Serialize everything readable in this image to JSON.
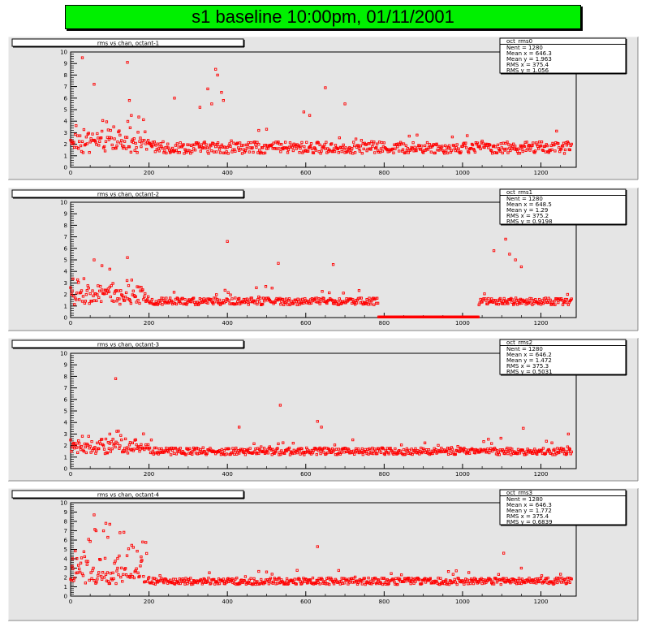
{
  "page_title": "s1 baseline 10:00pm, 01/11/2001",
  "colors": {
    "title_bg": "#00f000",
    "pad_bg": "#e5e5e5",
    "frame": "#ffffff",
    "marker": "#ff0000"
  },
  "chart_data": [
    {
      "type": "scatter",
      "title": "rms vs chan, octant-1",
      "stats": {
        "name": "oct_rms0",
        "lines": [
          "Nent = 1280",
          "Mean x = 646.3",
          "Mean y = 1.963",
          "RMS x = 375.4",
          "RMS y = 1.056"
        ]
      },
      "xlim": [
        0,
        1290
      ],
      "ylim": [
        0,
        10
      ],
      "xticks": [
        0,
        200,
        400,
        600,
        800,
        1000,
        1200
      ],
      "yticks": [
        0,
        1,
        2,
        3,
        4,
        5,
        6,
        7,
        8,
        9,
        10
      ],
      "baseline": 1.7,
      "noise": 0.5,
      "base_amp": 0.9,
      "gap": null,
      "outliers": [
        [
          30,
          9.5
        ],
        [
          60,
          7.2
        ],
        [
          145,
          9.1
        ],
        [
          150,
          5.8
        ],
        [
          155,
          4.5
        ],
        [
          265,
          6.0
        ],
        [
          330,
          5.2
        ],
        [
          350,
          6.8
        ],
        [
          360,
          5.5
        ],
        [
          370,
          8.5
        ],
        [
          375,
          8.0
        ],
        [
          385,
          6.5
        ],
        [
          390,
          5.8
        ],
        [
          595,
          4.8
        ],
        [
          610,
          4.5
        ],
        [
          650,
          6.9
        ],
        [
          700,
          5.5
        ],
        [
          480,
          3.2
        ],
        [
          500,
          3.3
        ]
      ]
    },
    {
      "type": "scatter",
      "title": "rms vs chan, octant-2",
      "stats": {
        "name": "oct_rms1",
        "lines": [
          "Nent = 1280",
          "Mean x = 648.5",
          "Mean y = 1.29",
          "RMS x = 375.2",
          "RMS y = 0.9198"
        ]
      },
      "xlim": [
        0,
        1290
      ],
      "ylim": [
        0,
        10
      ],
      "xticks": [
        0,
        200,
        400,
        600,
        800,
        1000,
        1200
      ],
      "yticks": [
        0,
        1,
        2,
        3,
        4,
        5,
        6,
        7,
        8,
        9,
        10
      ],
      "baseline": 1.4,
      "noise": 0.3,
      "base_amp": 0.8,
      "gap": [
        785,
        1040
      ],
      "outliers": [
        [
          60,
          5.0
        ],
        [
          80,
          4.5
        ],
        [
          100,
          4.2
        ],
        [
          145,
          5.2
        ],
        [
          400,
          6.6
        ],
        [
          530,
          4.7
        ],
        [
          670,
          4.6
        ],
        [
          1080,
          5.8
        ],
        [
          1110,
          6.8
        ],
        [
          1120,
          5.5
        ],
        [
          1135,
          5.0
        ],
        [
          1150,
          4.4
        ]
      ]
    },
    {
      "type": "scatter",
      "title": "rms vs chan, octant-3",
      "stats": {
        "name": "oct_rms2",
        "lines": [
          "Nent = 1280",
          "Mean x = 646.2",
          "Mean y = 1.472",
          "RMS x = 375.3",
          "RMS y = 0.5031"
        ]
      },
      "xlim": [
        0,
        1290
      ],
      "ylim": [
        0,
        10
      ],
      "xticks": [
        0,
        200,
        400,
        600,
        800,
        1000,
        1200
      ],
      "yticks": [
        0,
        1,
        2,
        3,
        4,
        5,
        6,
        7,
        8,
        9,
        10
      ],
      "baseline": 1.5,
      "noise": 0.3,
      "base_amp": 0.6,
      "gap": null,
      "outliers": [
        [
          115,
          7.8
        ],
        [
          535,
          5.5
        ],
        [
          630,
          4.1
        ],
        [
          640,
          3.6
        ],
        [
          430,
          3.6
        ],
        [
          1155,
          3.5
        ],
        [
          1270,
          3.0
        ],
        [
          100,
          3.0
        ]
      ]
    },
    {
      "type": "scatter",
      "title": "rms vs chan, octant-4",
      "stats": {
        "name": "oct_rms3",
        "lines": [
          "Nent = 1280",
          "Mean x = 646.3",
          "Mean y = 1.772",
          "RMS x = 375.4",
          "RMS y = 0.6839"
        ]
      },
      "xlim": [
        0,
        1290
      ],
      "ylim": [
        0,
        10
      ],
      "xticks": [
        0,
        200,
        400,
        600,
        800,
        1000,
        1200
      ],
      "yticks": [
        0,
        1,
        2,
        3,
        4,
        5,
        6,
        7,
        8,
        9,
        10
      ],
      "baseline": 1.6,
      "noise": 0.35,
      "base_amp": 2.0,
      "gap": null,
      "outliers": [
        [
          5,
          4.0
        ],
        [
          60,
          8.7
        ],
        [
          65,
          7.0
        ],
        [
          90,
          7.8
        ],
        [
          100,
          7.7
        ],
        [
          95,
          6.3
        ],
        [
          120,
          3.0
        ],
        [
          180,
          4.2
        ],
        [
          630,
          5.3
        ],
        [
          1105,
          4.6
        ],
        [
          1150,
          3.0
        ]
      ]
    }
  ]
}
